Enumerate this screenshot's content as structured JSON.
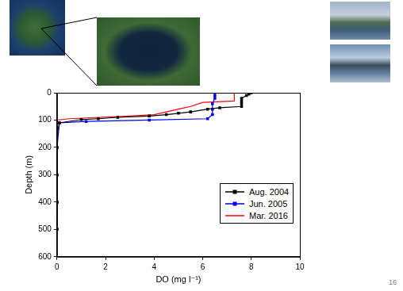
{
  "chart_data": {
    "type": "line",
    "x_label": "DO (mg l⁻¹)",
    "y_label": "Depth (m)",
    "xlim": [
      0,
      10
    ],
    "xticks": [
      0,
      2,
      4,
      6,
      8,
      10
    ],
    "ylim": [
      600,
      0
    ],
    "yticks": [
      0,
      100,
      200,
      300,
      400,
      500,
      600
    ],
    "grid": false,
    "legend": "lower right",
    "series": [
      {
        "name": "Aug. 2004",
        "color": "#000000",
        "marker": "square",
        "line_style": "solid",
        "x": [
          8.0,
          7.9,
          7.8,
          7.6,
          7.6,
          7.6,
          7.6,
          6.7,
          6.2,
          5.5,
          5.0,
          4.5,
          3.8,
          2.5,
          1.7,
          1.0,
          0.1,
          0,
          0,
          0,
          0,
          0
        ],
        "values": [
          0,
          5,
          10,
          20,
          30,
          40,
          50,
          55,
          60,
          70,
          75,
          80,
          85,
          90,
          95,
          98,
          110,
          150,
          200,
          300,
          400,
          500
        ]
      },
      {
        "name": "Jun. 2005",
        "color": "#0000ff",
        "marker": "square",
        "line_style": "solid",
        "x": [
          6.5,
          6.5,
          6.5,
          6.4,
          6.4,
          6.4,
          6.2,
          3.8,
          1.2,
          0.1,
          0,
          0,
          0,
          0
        ],
        "values": [
          0,
          10,
          20,
          40,
          60,
          80,
          95,
          100,
          105,
          110,
          200,
          300,
          400,
          500
        ]
      },
      {
        "name": "Mar. 2016",
        "color": "#ff0000",
        "marker": "none",
        "line_style": "solid",
        "x": [
          7.3,
          7.3,
          6.0,
          5.5,
          5.0,
          4.5,
          4.0,
          3.0,
          0.5,
          0,
          0,
          0,
          0
        ],
        "values": [
          0,
          30,
          35,
          50,
          60,
          70,
          80,
          85,
          95,
          100,
          200,
          400,
          450
        ]
      }
    ]
  },
  "page_number": 16
}
